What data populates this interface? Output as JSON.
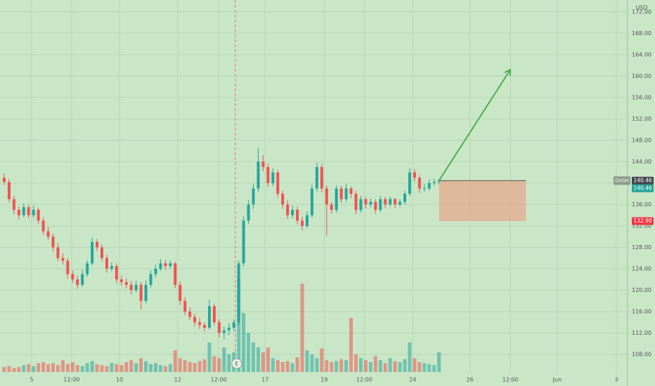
{
  "chart_data": {
    "type": "candlestick",
    "symbol": "DASH",
    "currency": "USD",
    "up_color": "#26a69a",
    "down_color": "#ef5350",
    "ohlc": [
      [
        141,
        141.8,
        139.6,
        140.2
      ],
      [
        140.2,
        140.8,
        136.4,
        137
      ],
      [
        137,
        137.6,
        134.2,
        135
      ],
      [
        135,
        135.6,
        133.2,
        134
      ],
      [
        134,
        136.2,
        133.6,
        135.5
      ],
      [
        135.5,
        136,
        133.4,
        134
      ],
      [
        134,
        135.8,
        133.5,
        135
      ],
      [
        135,
        135.4,
        132.4,
        133
      ],
      [
        133,
        133.6,
        130.4,
        131
      ],
      [
        131,
        131.8,
        129.4,
        130
      ],
      [
        130,
        130.6,
        127.2,
        128
      ],
      [
        128,
        128.8,
        125.4,
        126
      ],
      [
        126,
        126.9,
        124.8,
        125.5
      ],
      [
        125.5,
        126,
        122.2,
        123
      ],
      [
        123,
        123.7,
        121.4,
        122
      ],
      [
        122,
        122.8,
        120.3,
        121
      ],
      [
        121,
        123.8,
        120.6,
        123
      ],
      [
        123,
        125.6,
        122.5,
        125
      ],
      [
        125,
        129.8,
        124.6,
        129
      ],
      [
        129,
        129.6,
        127.3,
        128
      ],
      [
        128,
        128.5,
        125.4,
        126
      ],
      [
        126,
        126.6,
        123.3,
        124
      ],
      [
        124,
        125.2,
        123.5,
        124.5
      ],
      [
        124.5,
        125,
        121.3,
        122
      ],
      [
        122,
        122.7,
        120.8,
        121.5
      ],
      [
        121.5,
        122.2,
        120.3,
        121
      ],
      [
        121,
        121.7,
        119.2,
        120
      ],
      [
        120,
        121.8,
        119.6,
        121
      ],
      [
        121,
        121.5,
        116.4,
        118
      ],
      [
        118,
        121.8,
        117.5,
        121
      ],
      [
        121,
        123.7,
        120.5,
        123
      ],
      [
        123,
        124.8,
        122.4,
        124
      ],
      [
        124,
        125.8,
        123.6,
        125
      ],
      [
        125,
        125.6,
        123.8,
        124.5
      ],
      [
        124.5,
        125.5,
        124,
        125
      ],
      [
        125,
        125.3,
        120.4,
        121
      ],
      [
        121,
        121.6,
        117.2,
        118
      ],
      [
        118,
        118.7,
        115.3,
        116
      ],
      [
        116,
        116.8,
        114.4,
        115
      ],
      [
        115,
        115.6,
        113.2,
        114
      ],
      [
        114,
        114.8,
        112.8,
        113.5
      ],
      [
        113.5,
        114,
        112.3,
        113
      ],
      [
        113,
        118.2,
        112.6,
        117
      ],
      [
        117,
        117.5,
        113.4,
        114
      ],
      [
        114,
        114.6,
        111.2,
        112
      ],
      [
        112,
        113.2,
        110.8,
        112.5
      ],
      [
        112.5,
        113.8,
        111.6,
        113
      ],
      [
        113,
        114.6,
        112.4,
        114
      ],
      [
        114,
        125.6,
        113.5,
        125
      ],
      [
        125,
        133.8,
        124.4,
        133
      ],
      [
        133,
        136.8,
        132.4,
        136
      ],
      [
        136,
        139.8,
        135.2,
        139
      ],
      [
        139,
        146.6,
        138.4,
        144
      ],
      [
        144,
        145.2,
        142.2,
        143
      ],
      [
        143,
        143.6,
        139.2,
        140
      ],
      [
        140,
        142.8,
        139.4,
        142
      ],
      [
        142,
        142.5,
        137.3,
        138
      ],
      [
        138,
        138.6,
        135.2,
        136
      ],
      [
        136,
        136.8,
        133.3,
        134
      ],
      [
        134,
        135.8,
        133.4,
        135
      ],
      [
        135,
        135.6,
        132.3,
        133
      ],
      [
        133,
        133.7,
        131.2,
        132
      ],
      [
        132,
        134.8,
        131.6,
        134
      ],
      [
        134,
        139.7,
        133.5,
        139
      ],
      [
        139,
        143.8,
        138.4,
        143
      ],
      [
        143,
        143.5,
        138.3,
        139
      ],
      [
        139,
        139.6,
        130.2,
        136
      ],
      [
        136,
        136.5,
        134.3,
        135
      ],
      [
        135,
        139.6,
        134.5,
        139
      ],
      [
        139,
        139.5,
        136.3,
        137
      ],
      [
        137,
        139.8,
        136.5,
        139
      ],
      [
        139,
        139.4,
        137.2,
        138
      ],
      [
        138,
        138.5,
        134.2,
        135
      ],
      [
        135,
        137.6,
        134.5,
        137
      ],
      [
        137,
        137.4,
        135.3,
        136
      ],
      [
        136,
        137.1,
        135.5,
        136.5
      ],
      [
        136.5,
        137,
        134.3,
        135
      ],
      [
        135,
        137.6,
        134.6,
        137
      ],
      [
        137,
        137.4,
        135.3,
        136
      ],
      [
        136,
        137.5,
        135.6,
        137
      ],
      [
        137,
        137.3,
        135.4,
        136
      ],
      [
        136,
        137,
        135.6,
        136.5
      ],
      [
        136.5,
        138.6,
        136,
        138
      ],
      [
        138,
        142.8,
        137.6,
        142
      ],
      [
        142,
        142.6,
        140.3,
        141
      ],
      [
        141,
        141.5,
        138.2,
        139
      ],
      [
        139,
        139.8,
        138.4,
        139
      ],
      [
        139,
        140.6,
        138.6,
        140
      ],
      [
        140,
        140.8,
        139.5,
        140.2
      ],
      [
        140.2,
        140.8,
        139.8,
        140.46
      ]
    ],
    "volume": [
      5,
      6,
      4,
      5,
      7,
      8,
      6,
      9,
      10,
      8,
      9,
      7,
      12,
      8,
      10,
      7,
      6,
      9,
      11,
      8,
      7,
      6,
      9,
      8,
      7,
      10,
      12,
      9,
      14,
      11,
      8,
      9,
      7,
      6,
      8,
      22,
      14,
      12,
      10,
      9,
      11,
      13,
      30,
      16,
      14,
      25,
      18,
      20,
      95,
      60,
      40,
      30,
      25,
      20,
      25,
      14,
      12,
      10,
      11,
      9,
      15,
      90,
      22,
      18,
      14,
      24,
      12,
      10,
      11,
      13,
      12,
      55,
      18,
      14,
      12,
      10,
      16,
      12,
      9,
      14,
      11,
      10,
      13,
      30,
      14,
      10,
      9,
      8,
      7,
      20
    ],
    "volume_lim": [
      0,
      100
    ],
    "xlim": [
      -0.86,
      127.6
    ],
    "xticks": [
      {
        "value": 5.6,
        "label": "5"
      },
      {
        "value": 13.8,
        "label": "12:00"
      },
      {
        "value": 23.6,
        "label": "10"
      },
      {
        "value": 35.5,
        "label": "12"
      },
      {
        "value": 43.9,
        "label": "12:00"
      },
      {
        "value": 53.4,
        "label": "17"
      },
      {
        "value": 65.5,
        "label": "19"
      },
      {
        "value": 73.7,
        "label": "12:00"
      },
      {
        "value": 83.6,
        "label": "24"
      },
      {
        "value": 95.3,
        "label": "26"
      },
      {
        "value": 103.6,
        "label": "12:00"
      },
      {
        "value": 113.2,
        "label": "Jun"
      },
      {
        "value": 125.3,
        "label": "3"
      }
    ],
    "ylim": [
      102.1,
      174.2
    ],
    "yticks": [
      {
        "value": 108,
        "label": "108.00"
      },
      {
        "value": 112,
        "label": "112.00"
      },
      {
        "value": 116,
        "label": "116.00"
      },
      {
        "value": 120,
        "label": "120.00"
      },
      {
        "value": 124,
        "label": "124.00"
      },
      {
        "value": 128,
        "label": "128.00"
      },
      {
        "value": 132,
        "label": "132.00"
      },
      {
        "value": 136,
        "label": "136.00"
      },
      {
        "value": 140,
        "label": "140.00"
      },
      {
        "value": 144,
        "label": "144.00"
      },
      {
        "value": 148,
        "label": "148.00"
      },
      {
        "value": 152,
        "label": "152.00"
      },
      {
        "value": 156,
        "label": "156.00"
      },
      {
        "value": 160,
        "label": "160.00"
      },
      {
        "value": 164,
        "label": "164.00"
      },
      {
        "value": 168,
        "label": "168.00"
      },
      {
        "value": 172,
        "label": "172.00"
      }
    ],
    "grid": true,
    "price_labels": [
      {
        "value": 140.46,
        "color": "#434651"
      },
      {
        "value": 140.46,
        "color": "#26a69a"
      },
      {
        "value": 132.9,
        "label": "132.90",
        "color": "#f23645"
      }
    ],
    "position": {
      "start": 89,
      "end": 106.8,
      "entry": 140.46,
      "stop": 132.9
    },
    "arrow": {
      "x": [
        89,
        103.5
      ],
      "y": [
        140.46,
        161.06
      ],
      "color": "#4caf50"
    },
    "events": [
      {
        "x": 47.3,
        "label": "E"
      }
    ]
  }
}
